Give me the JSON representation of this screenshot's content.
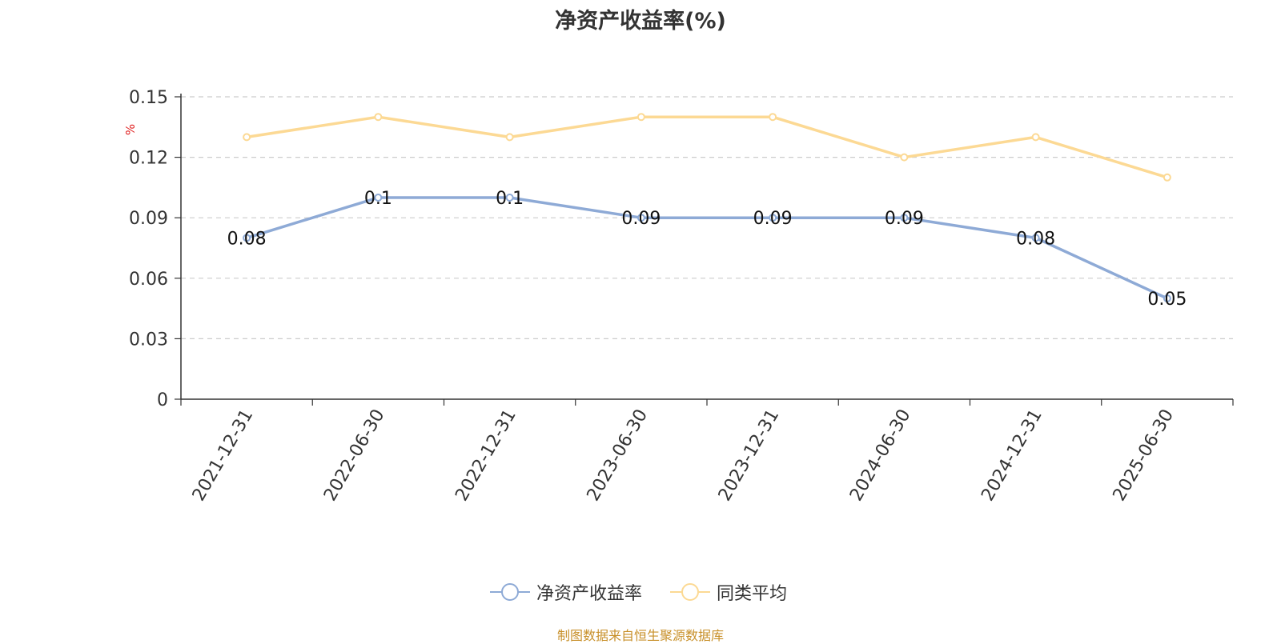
{
  "title": "净资产收益率(%)",
  "source_note": "制图数据来自恒生聚源数据库",
  "colors": {
    "roe": "#8eaad6",
    "avg": "#fcd994",
    "unit": "#e02020",
    "axis": "#333333",
    "grid": "#cccccc"
  },
  "chart_data": {
    "type": "line",
    "title": "净资产收益率(%)",
    "ylabel": "%",
    "ylim": [
      0,
      0.15
    ],
    "yticks": [
      0,
      0.03,
      0.06,
      0.09,
      0.12,
      0.15
    ],
    "ytick_labels": [
      "0",
      "0.03",
      "0.06",
      "0.09",
      "0.12",
      "0.15"
    ],
    "categories": [
      "2021-12-31",
      "2022-06-30",
      "2022-12-31",
      "2023-06-30",
      "2023-12-31",
      "2024-06-30",
      "2024-12-31",
      "2025-06-30"
    ],
    "grid": true,
    "legend_position": "bottom",
    "series": [
      {
        "name": "净资产收益率",
        "values": [
          0.08,
          0.1,
          0.1,
          0.09,
          0.09,
          0.09,
          0.08,
          0.05
        ],
        "labels": [
          "0.08",
          "0.1",
          "0.1",
          "0.09",
          "0.09",
          "0.09",
          "0.08",
          "0.05"
        ],
        "show_labels": true
      },
      {
        "name": "同类平均",
        "values": [
          0.13,
          0.14,
          0.13,
          0.14,
          0.14,
          0.12,
          0.13,
          0.11
        ],
        "show_labels": false
      }
    ]
  }
}
